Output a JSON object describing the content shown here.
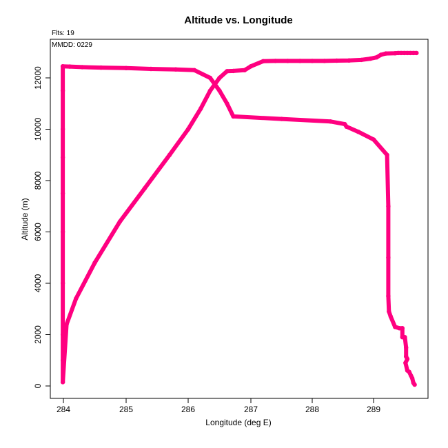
{
  "chart_data": {
    "type": "scatter",
    "title": "Altitude vs. Longitude",
    "xlabel": "Longitude (deg E)",
    "ylabel": "Altitude (m)",
    "annotations": {
      "flights": "Flts: 19",
      "date": "MMDD: 0229"
    },
    "x_tick_labels": [
      "284",
      "285",
      "286",
      "287",
      "288",
      "289"
    ],
    "y_ticks": [
      0,
      2000,
      4000,
      6000,
      8000,
      10000,
      12000
    ],
    "y_range": [
      -300,
      13300
    ],
    "grid": false,
    "color": "#ff0080",
    "series": [
      {
        "x": [
          283.99,
          283.99,
          283.99,
          283.99,
          283.99,
          283.99,
          283.99,
          283.99,
          283.99,
          283.99,
          284.1,
          284.3,
          284.6,
          285.0,
          285.4,
          285.8,
          286.1,
          286.35,
          286.5,
          286.62,
          286.72,
          287.5,
          288.3,
          288.53,
          288.56,
          288.75,
          289.0,
          289.22,
          289.24,
          289.24,
          289.24,
          289.25,
          289.28,
          289.35,
          289.42,
          289.47,
          289.47,
          289.51,
          289.53,
          289.53,
          289.55,
          289.52,
          289.55,
          289.58,
          289.61,
          289.63,
          289.65,
          289.67
        ],
        "y": [
          150,
          1000,
          2000,
          4000,
          6000,
          7500,
          8900,
          10000,
          11500,
          12450,
          12440,
          12420,
          12400,
          12380,
          12350,
          12330,
          12300,
          12000,
          11500,
          11000,
          10500,
          10400,
          10300,
          10200,
          10100,
          9900,
          9600,
          9000,
          7000,
          5000,
          3500,
          2900,
          2700,
          2300,
          2250,
          2250,
          1900,
          1900,
          1500,
          1150,
          1050,
          900,
          600,
          550,
          400,
          300,
          120,
          50
        ]
      },
      {
        "x": [
          283.99,
          284.05,
          284.2,
          284.5,
          284.9,
          285.3,
          285.7,
          286.0,
          286.2,
          286.35,
          286.5,
          286.62,
          286.72,
          286.9,
          287.0,
          287.2,
          287.4,
          287.6,
          287.8,
          288.0,
          288.2,
          288.4,
          288.6,
          288.8,
          288.95,
          289.05,
          289.12,
          289.2,
          289.35,
          289.4,
          289.45,
          289.5,
          289.55,
          289.6,
          289.65,
          289.7
        ],
        "y": [
          150,
          2400,
          3400,
          4800,
          6400,
          7700,
          9000,
          10000,
          10800,
          11500,
          12000,
          12260,
          12270,
          12300,
          12450,
          12650,
          12660,
          12660,
          12660,
          12660,
          12660,
          12670,
          12680,
          12700,
          12750,
          12800,
          12900,
          12950,
          12960,
          12970,
          12970,
          12970,
          12970,
          12970,
          12970,
          12970
        ]
      }
    ]
  }
}
